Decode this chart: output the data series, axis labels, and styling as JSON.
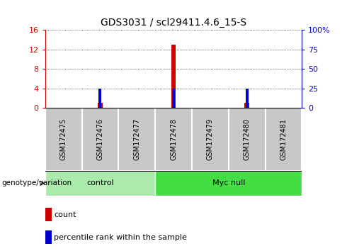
{
  "title": "GDS3031 / scl29411.4.6_15-S",
  "samples": [
    "GSM172475",
    "GSM172476",
    "GSM172477",
    "GSM172478",
    "GSM172479",
    "GSM172480",
    "GSM172481"
  ],
  "count_values": [
    0,
    1,
    0,
    13,
    0,
    1,
    0
  ],
  "percentile_values": [
    0,
    25,
    0,
    25,
    0,
    25,
    0
  ],
  "ylim_left": [
    0,
    16
  ],
  "ylim_right": [
    0,
    100
  ],
  "yticks_left": [
    0,
    4,
    8,
    12,
    16
  ],
  "yticks_right": [
    0,
    25,
    50,
    75,
    100
  ],
  "yticklabels_right": [
    "0",
    "25",
    "50",
    "75",
    "100%"
  ],
  "groups": [
    {
      "label": "control",
      "start": 0,
      "end": 3,
      "color": "#AAEAAA"
    },
    {
      "label": "Myc null",
      "start": 3,
      "end": 7,
      "color": "#44DD44"
    }
  ],
  "group_label": "genotype/variation",
  "bar_color_red": "#CC0000",
  "bar_color_blue": "#0000CC",
  "count_bar_width": 0.12,
  "percentile_bar_width": 0.08,
  "sample_box_color": "#C8C8C8",
  "legend_count_label": "count",
  "legend_pct_label": "percentile rank within the sample",
  "left_tick_color": "#CC0000",
  "right_tick_color": "#0000CC"
}
